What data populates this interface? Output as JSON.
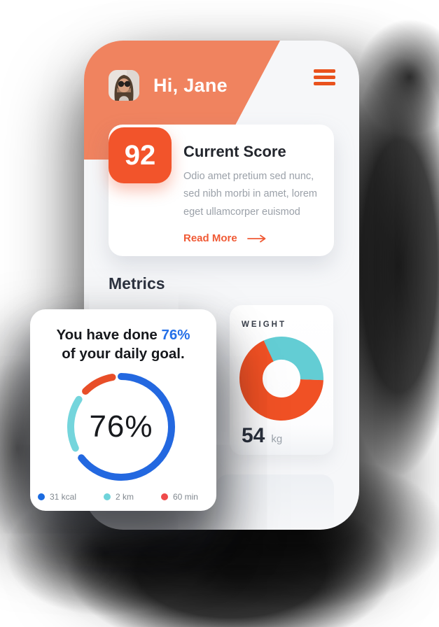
{
  "header": {
    "greeting": "Hi, Jane"
  },
  "score_card": {
    "score": "92",
    "title": "Current Score",
    "description": "Odio amet pretium sed nunc, sed nibh morbi in amet, lorem eget ullamcorper euismod",
    "read_more": "Read More"
  },
  "sections": {
    "metrics_heading": "Metrics"
  },
  "goal_card": {
    "title_part1": "You have done",
    "title_highlight": "76%",
    "title_line2": "of your daily goal.",
    "center_label": "76%"
  },
  "weight_card": {
    "label": "WEIGHT",
    "value": "54",
    "unit": "kg"
  },
  "colors": {
    "header_orange": "#F0835F",
    "accent_orange": "#F2542B",
    "link_orange": "#F05A35",
    "blue": "#2368E0",
    "teal": "#74D5DC",
    "red": "#EF4B4B",
    "dark_text": "#23262D",
    "gray_text": "#9BA1A9"
  },
  "chart_data": [
    {
      "type": "progress-ring",
      "title": "You have done 76% of your daily goal.",
      "center_label": "76%",
      "percent": 76,
      "legend_position": "bottom",
      "segments": [
        {
          "label": "31 kcal",
          "color": "#2368E0",
          "start_deg": 0,
          "sweep_deg": 232
        },
        {
          "label": "2 km",
          "color": "#74D5DC",
          "start_deg": 245,
          "sweep_deg": 58
        },
        {
          "label": "60 min",
          "color": "#E84E28",
          "start_deg": 315,
          "sweep_deg": 35
        }
      ],
      "legend_dot_colors": [
        "#1B6BE0",
        "#6FD3DA",
        "#EF4B4B"
      ]
    },
    {
      "type": "donut",
      "title": "WEIGHT",
      "value": 54,
      "unit": "kg",
      "slices": [
        {
          "name": "secondary",
          "color": "#63CDD4",
          "start_deg": -25,
          "sweep_deg": 117,
          "share": 0.325
        },
        {
          "name": "primary",
          "color": "#F05125",
          "start_deg": 92,
          "sweep_deg": 243,
          "share": 0.675
        }
      ]
    }
  ]
}
